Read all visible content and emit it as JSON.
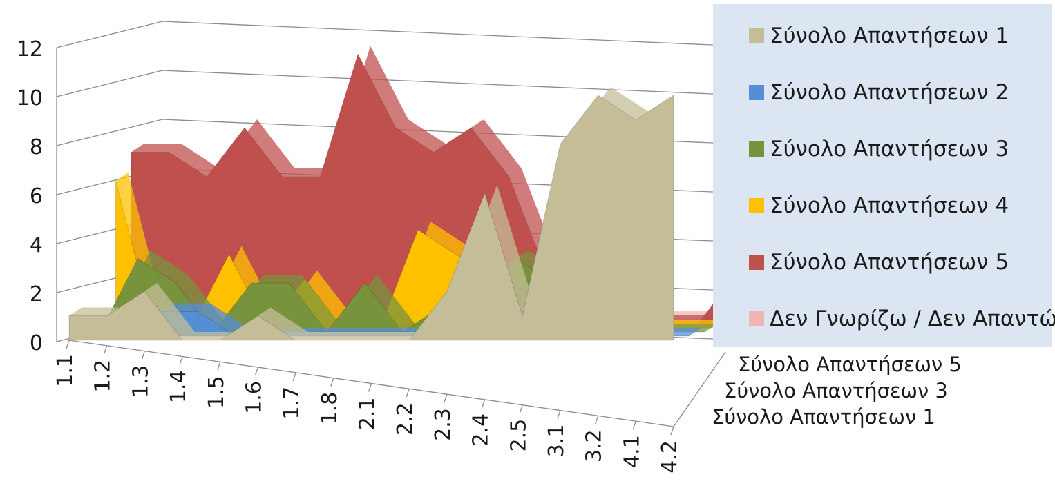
{
  "chart_data": {
    "type": "area",
    "subtype": "3d-area",
    "categories": [
      "1.1",
      "1.2",
      "1.3",
      "1.4",
      "1.5",
      "1.6",
      "1.7",
      "1.8",
      "2.1",
      "2.2",
      "2.3",
      "2.4",
      "2.5",
      "3.1",
      "3.2",
      "4.1",
      "4.2"
    ],
    "y_ticks": [
      "0",
      "2",
      "4",
      "6",
      "8",
      "10",
      "12"
    ],
    "ylim": [
      0,
      12
    ],
    "depth_labels": [
      "Σύνολο Απαντήσεων 5",
      "Σύνολο Απαντήσεων 3",
      "Σύνολο Απαντήσεων 1"
    ],
    "legend_position": "right",
    "grid": true,
    "series": [
      {
        "name": "Σύνολο Απαντήσεων 1",
        "color": "#c4bd97",
        "values": [
          1,
          1,
          2,
          0,
          0,
          1,
          0,
          0,
          0,
          0,
          2,
          6,
          1,
          8,
          10,
          9,
          10
        ]
      },
      {
        "name": "Σύνολο Απαντήσεων 2",
        "color": "#558ed5",
        "values": [
          0,
          0,
          1,
          1,
          0,
          0,
          0,
          0,
          0,
          0,
          0,
          0,
          2,
          0,
          0,
          0,
          0
        ]
      },
      {
        "name": "Σύνολο Απαντήσεων 3",
        "color": "#77933c",
        "values": [
          0,
          3,
          2,
          0,
          2,
          2,
          0,
          2,
          0,
          1,
          2,
          3,
          2,
          0,
          0,
          0,
          0
        ]
      },
      {
        "name": "Σύνολο Απαντήσεων 4",
        "color": "#ffc000",
        "values": [
          6,
          0,
          0,
          3,
          0,
          2,
          0,
          0,
          4,
          3,
          2,
          0,
          0,
          0,
          0,
          0,
          0
        ]
      },
      {
        "name": "Σύνολο Απαντήσεων 5",
        "color": "#c0504d",
        "values": [
          7,
          7,
          6,
          8,
          6,
          6,
          11,
          8,
          7,
          8,
          6,
          2,
          0,
          0,
          0,
          0,
          2
        ]
      },
      {
        "name": "Δεν Γνωρίζω / Δεν Απαντώ",
        "color": "#f2b5b5",
        "values": [
          0,
          0,
          0,
          0,
          0,
          0,
          0,
          0,
          0,
          0,
          0,
          0,
          0,
          0,
          0,
          0,
          1
        ]
      }
    ]
  }
}
